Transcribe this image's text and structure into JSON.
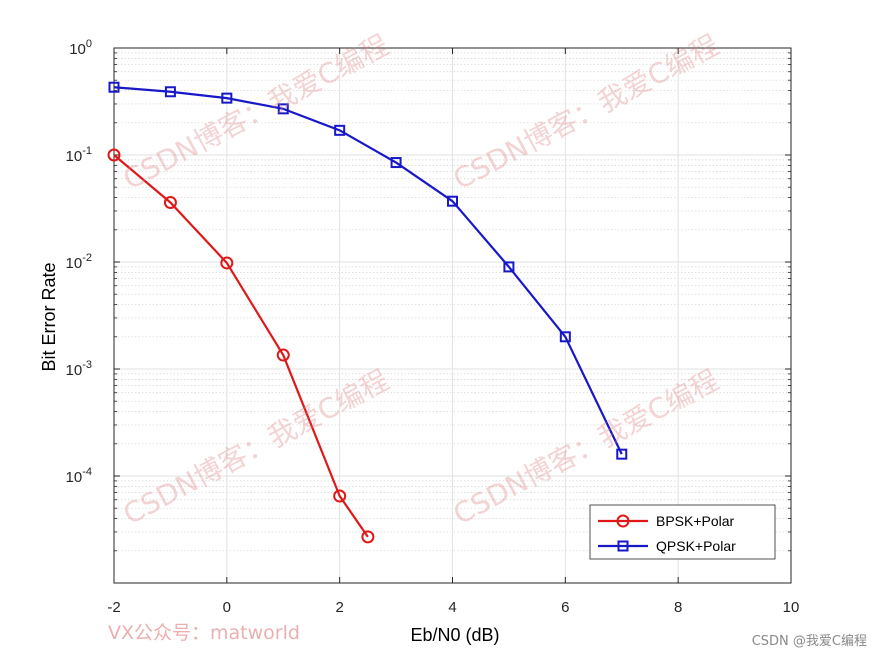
{
  "chart_data": {
    "type": "line",
    "title": "",
    "xlabel": "Eb/N0 (dB)",
    "ylabel": "Bit Error Rate",
    "xlim": [
      -2,
      10
    ],
    "ylim": [
      1e-05,
      1
    ],
    "yscale": "log",
    "grid": true,
    "minor_grid": true,
    "legend_position": "bottom-right",
    "x_ticks": [
      -2,
      0,
      2,
      4,
      6,
      8,
      10
    ],
    "x_tick_labels": [
      "-2",
      "0",
      "2",
      "4",
      "6",
      "8",
      "10"
    ],
    "y_ticks": [
      0.0001,
      0.001,
      0.01,
      0.1,
      1
    ],
    "y_tick_labels": [
      {
        "base": "10",
        "exp": "-4"
      },
      {
        "base": "10",
        "exp": "-3"
      },
      {
        "base": "10",
        "exp": "-2"
      },
      {
        "base": "10",
        "exp": "-1"
      },
      {
        "base": "10",
        "exp": "0"
      }
    ],
    "series": [
      {
        "name": "BPSK+Polar",
        "color": "#e01818",
        "marker": "circle",
        "x": [
          -2,
          -1,
          0,
          1,
          2,
          2.5
        ],
        "y": [
          0.1,
          0.036,
          0.0098,
          0.00135,
          6.5e-05,
          2.7e-05
        ]
      },
      {
        "name": "QPSK+Polar",
        "color": "#1818c8",
        "marker": "square",
        "x": [
          -2,
          -1,
          0,
          1,
          2,
          3,
          4,
          5,
          6,
          7
        ],
        "y": [
          0.43,
          0.39,
          0.34,
          0.27,
          0.17,
          0.085,
          0.037,
          0.009,
          0.002,
          0.00016
        ]
      }
    ]
  },
  "watermarks": {
    "diagonal": "CSDN博客：我爱C编程",
    "bottom_left": "VX公众号：matworld",
    "bottom_right": "CSDN @我爱C编程"
  }
}
